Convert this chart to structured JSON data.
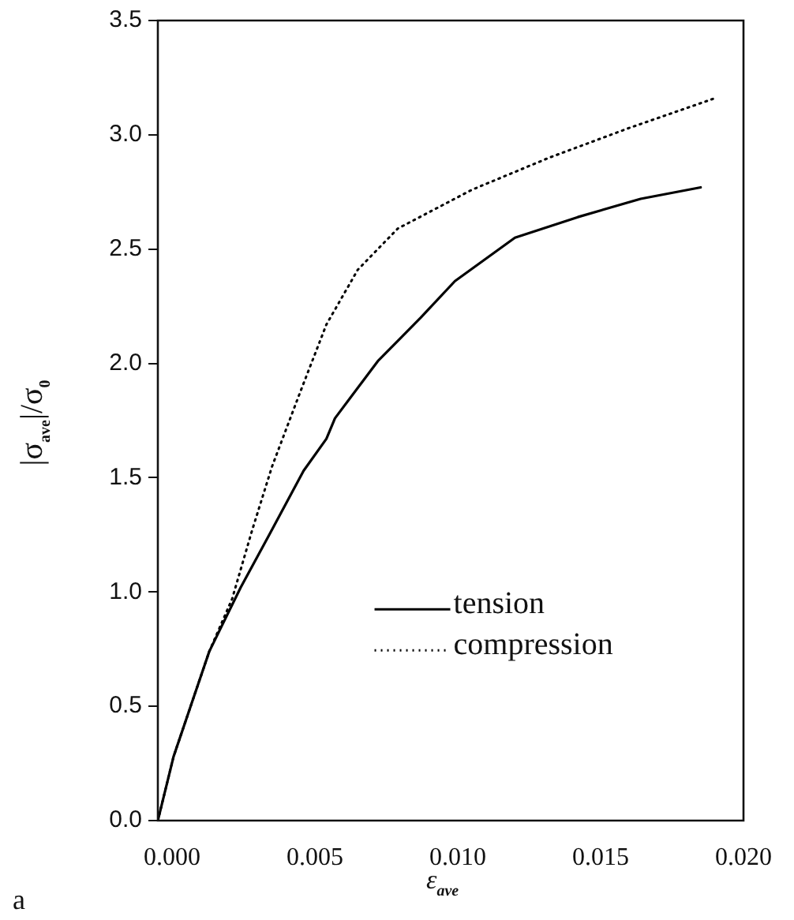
{
  "chart_data": {
    "type": "line",
    "xlabel": "ε$_{ave}$",
    "ylabel": "|σ$_{ave}$|/σ$_{0}$",
    "annotations": [
      "a"
    ],
    "xlim": [
      -0.0005,
      0.02
    ],
    "xticks": [
      {
        "value": 0,
        "label": "0.000"
      },
      {
        "value": 0.005,
        "label": "0.005"
      },
      {
        "value": 0.01,
        "label": "0.010"
      },
      {
        "value": 0.015,
        "label": "0.015"
      },
      {
        "value": 0.02,
        "label": "0.020"
      }
    ],
    "ylim": [
      0,
      3.5
    ],
    "yticks": [
      {
        "value": 0,
        "label": "0.0"
      },
      {
        "value": 0.5,
        "label": "0.5"
      },
      {
        "value": 1,
        "label": "1.0"
      },
      {
        "value": 1.5,
        "label": "1.5"
      },
      {
        "value": 2,
        "label": "2.0"
      },
      {
        "value": 2.5,
        "label": "2.5"
      },
      {
        "value": 3,
        "label": "3.0"
      },
      {
        "value": 3.5,
        "label": "3.5"
      }
    ],
    "grid": false,
    "legend": "bottom",
    "marker": "none",
    "series": [
      {
        "name": "tension",
        "color": "#000000",
        "line_style": "solid",
        "x": [
          -0.0005,
          5e-05,
          0.0013,
          0.0024,
          0.0034,
          0.0046,
          0.0054,
          0.0057,
          0.0072,
          0.0087,
          0.0099,
          0.012,
          0.0142,
          0.0164,
          0.0185
        ],
        "values": [
          0,
          0.28,
          0.74,
          1.02,
          1.25,
          1.53,
          1.67,
          1.76,
          2.01,
          2.2,
          2.36,
          2.55,
          2.64,
          2.72,
          2.77
        ]
      },
      {
        "name": "compression",
        "color": "#000000",
        "line_style": "dotted",
        "x": [
          -0.0005,
          5e-05,
          0.0013,
          0.0021,
          0.0028,
          0.0035,
          0.0045,
          0.0054,
          0.0065,
          0.0079,
          0.0105,
          0.0132,
          0.016,
          0.019
        ],
        "values": [
          0,
          0.28,
          0.74,
          0.97,
          1.27,
          1.55,
          1.88,
          2.17,
          2.41,
          2.59,
          2.76,
          2.9,
          3.03,
          3.16
        ]
      }
    ]
  }
}
